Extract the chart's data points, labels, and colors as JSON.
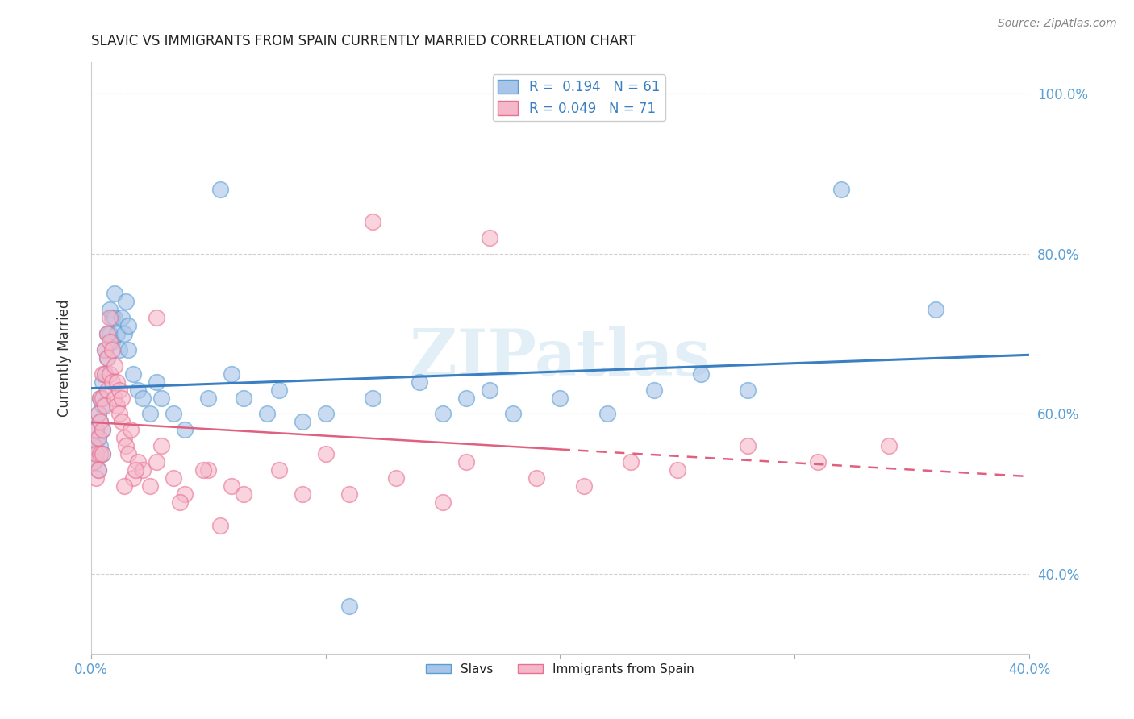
{
  "title": "SLAVIC VS IMMIGRANTS FROM SPAIN CURRENTLY MARRIED CORRELATION CHART",
  "source": "Source: ZipAtlas.com",
  "ylabel": "Currently Married",
  "x_min": 0.0,
  "x_max": 0.4,
  "y_min": 0.3,
  "y_max": 1.04,
  "x_ticks": [
    0.0,
    0.1,
    0.2,
    0.3,
    0.4
  ],
  "x_tick_labels": [
    "0.0%",
    "",
    "",
    "",
    "40.0%"
  ],
  "y_ticks": [
    0.4,
    0.6,
    0.8,
    1.0
  ],
  "y_tick_labels": [
    "40.0%",
    "60.0%",
    "80.0%",
    "100.0%"
  ],
  "slavs_color": "#a8c4e8",
  "spain_color": "#f5b8cb",
  "slavs_edge_color": "#5a9fd4",
  "spain_edge_color": "#e87090",
  "slavs_line_color": "#3a7fc1",
  "spain_line_color": "#e06080",
  "slavs_R": 0.194,
  "slavs_N": 61,
  "spain_R": 0.049,
  "spain_N": 71,
  "watermark": "ZIPatlas",
  "background_color": "#ffffff",
  "grid_color": "#d0d0d0",
  "legend_label_slavs": "Slavs",
  "legend_label_spain": "Immigrants from Spain",
  "slavs_x": [
    0.001,
    0.001,
    0.002,
    0.002,
    0.003,
    0.003,
    0.003,
    0.004,
    0.004,
    0.004,
    0.005,
    0.005,
    0.005,
    0.005,
    0.006,
    0.006,
    0.007,
    0.007,
    0.008,
    0.008,
    0.009,
    0.009,
    0.01,
    0.01,
    0.011,
    0.012,
    0.013,
    0.014,
    0.015,
    0.016,
    0.016,
    0.018,
    0.02,
    0.022,
    0.025,
    0.028,
    0.03,
    0.035,
    0.04,
    0.05,
    0.055,
    0.06,
    0.065,
    0.075,
    0.08,
    0.09,
    0.1,
    0.11,
    0.12,
    0.14,
    0.15,
    0.16,
    0.17,
    0.18,
    0.2,
    0.22,
    0.24,
    0.26,
    0.28,
    0.32,
    0.36
  ],
  "slavs_y": [
    0.56,
    0.54,
    0.58,
    0.55,
    0.6,
    0.57,
    0.53,
    0.62,
    0.59,
    0.56,
    0.64,
    0.61,
    0.58,
    0.55,
    0.68,
    0.65,
    0.7,
    0.67,
    0.73,
    0.7,
    0.72,
    0.69,
    0.75,
    0.72,
    0.7,
    0.68,
    0.72,
    0.7,
    0.74,
    0.68,
    0.71,
    0.65,
    0.63,
    0.62,
    0.6,
    0.64,
    0.62,
    0.6,
    0.58,
    0.62,
    0.88,
    0.65,
    0.62,
    0.6,
    0.63,
    0.59,
    0.6,
    0.36,
    0.62,
    0.64,
    0.6,
    0.62,
    0.63,
    0.6,
    0.62,
    0.6,
    0.63,
    0.65,
    0.63,
    0.88,
    0.73
  ],
  "spain_x": [
    0.001,
    0.001,
    0.002,
    0.002,
    0.002,
    0.003,
    0.003,
    0.003,
    0.004,
    0.004,
    0.004,
    0.005,
    0.005,
    0.005,
    0.005,
    0.006,
    0.006,
    0.006,
    0.007,
    0.007,
    0.007,
    0.008,
    0.008,
    0.008,
    0.009,
    0.009,
    0.01,
    0.01,
    0.011,
    0.011,
    0.012,
    0.012,
    0.013,
    0.013,
    0.014,
    0.015,
    0.016,
    0.017,
    0.018,
    0.02,
    0.022,
    0.025,
    0.028,
    0.03,
    0.035,
    0.04,
    0.05,
    0.06,
    0.08,
    0.09,
    0.1,
    0.11,
    0.13,
    0.15,
    0.16,
    0.19,
    0.21,
    0.23,
    0.25,
    0.28,
    0.31,
    0.12,
    0.065,
    0.048,
    0.014,
    0.019,
    0.028,
    0.038,
    0.055,
    0.17,
    0.34
  ],
  "spain_y": [
    0.56,
    0.54,
    0.58,
    0.55,
    0.52,
    0.6,
    0.57,
    0.53,
    0.62,
    0.59,
    0.55,
    0.65,
    0.62,
    0.58,
    0.55,
    0.68,
    0.65,
    0.61,
    0.7,
    0.67,
    0.63,
    0.72,
    0.69,
    0.65,
    0.68,
    0.64,
    0.66,
    0.62,
    0.64,
    0.61,
    0.63,
    0.6,
    0.62,
    0.59,
    0.57,
    0.56,
    0.55,
    0.58,
    0.52,
    0.54,
    0.53,
    0.51,
    0.54,
    0.56,
    0.52,
    0.5,
    0.53,
    0.51,
    0.53,
    0.5,
    0.55,
    0.5,
    0.52,
    0.49,
    0.54,
    0.52,
    0.51,
    0.54,
    0.53,
    0.56,
    0.54,
    0.84,
    0.5,
    0.53,
    0.51,
    0.53,
    0.72,
    0.49,
    0.46,
    0.82,
    0.56
  ]
}
